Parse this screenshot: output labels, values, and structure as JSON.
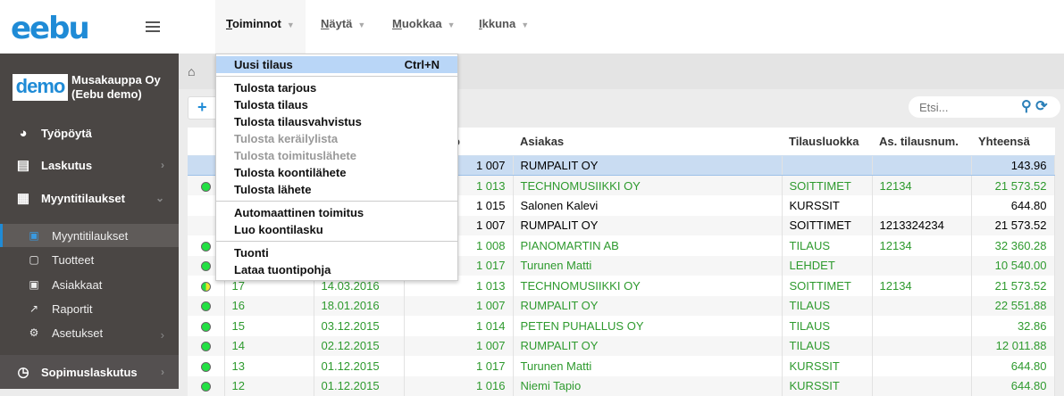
{
  "app": {
    "logo": "eebu",
    "company_logo": "demo",
    "company": "Musakauppa Oy (Eebu demo)"
  },
  "topnav": [
    {
      "label": "Toiminnot",
      "key": "T",
      "rest": "oiminnot"
    },
    {
      "label": "Näytä",
      "key": "N",
      "rest": "äytä"
    },
    {
      "label": "Muokkaa",
      "key": "M",
      "rest": "uokkaa"
    },
    {
      "label": "Ikkuna",
      "key": "I",
      "rest": "kkuna"
    }
  ],
  "sidebar": {
    "items": [
      {
        "label": "Työpöytä",
        "icon": "dashboard-icon"
      },
      {
        "label": "Laskutus",
        "icon": "invoice-icon"
      },
      {
        "label": "Myyntitilaukset",
        "icon": "store-icon"
      },
      {
        "label": "Sopimuslaskutus",
        "icon": "clock-icon"
      }
    ],
    "sub": [
      {
        "label": "Myyntitilaukset"
      },
      {
        "label": "Tuotteet"
      },
      {
        "label": "Asiakkaat"
      },
      {
        "label": "Raportit"
      },
      {
        "label": "Asetukset"
      }
    ]
  },
  "toolbar": {
    "add": "+",
    "search_placeholder": "Etsi..."
  },
  "menu": {
    "items": [
      {
        "label": "Uusi tilaus",
        "shortcut": "Ctrl+N"
      },
      {
        "label": "Tulosta tarjous"
      },
      {
        "label": "Tulosta tilaus"
      },
      {
        "label": "Tulosta tilausvahvistus"
      },
      {
        "label": "Tulosta keräilylista",
        "disabled": true
      },
      {
        "label": "Tulosta toimituslähete",
        "disabled": true
      },
      {
        "label": "Tulosta koontilähete"
      },
      {
        "label": "Tulosta lähete"
      },
      {
        "label": "Automaattinen toimitus"
      },
      {
        "label": "Luo koontilasku"
      },
      {
        "label": "Tuonti"
      },
      {
        "label": "Lataa tuontipohja"
      }
    ]
  },
  "table": {
    "headers": [
      "",
      "",
      "",
      "snumero",
      "Asiakas",
      "Tilausluokka",
      "As. tilausnum.",
      "Yhteensä"
    ],
    "rows": [
      {
        "status": "",
        "nro": "",
        "date": "",
        "custno": "1 007",
        "customer": "RUMPALIT OY",
        "class": "",
        "ref": "",
        "total": "143.96"
      },
      {
        "status": "green",
        "nro": "",
        "date": "",
        "custno": "1 013",
        "customer": "TECHNOMUSIIKKI OY",
        "class": "SOITTIMET",
        "ref": "12134",
        "total": "21 573.52"
      },
      {
        "status": "",
        "nro": "",
        "date": "",
        "custno": "1 015",
        "customer": "Salonen Kalevi",
        "class": "KURSSIT",
        "ref": "",
        "total": "644.80"
      },
      {
        "status": "",
        "nro": "",
        "date": "",
        "custno": "1 007",
        "customer": "RUMPALIT OY",
        "class": "SOITTIMET",
        "ref": "1213324234",
        "total": "21 573.52"
      },
      {
        "status": "green",
        "nro": "",
        "date": "",
        "custno": "1 008",
        "customer": "PIANOMARTIN AB",
        "class": "TILAUS",
        "ref": "12134",
        "total": "32 360.28"
      },
      {
        "status": "green",
        "nro": "",
        "date": "",
        "custno": "1 017",
        "customer": "Turunen Matti",
        "class": "LEHDET",
        "ref": "",
        "total": "10 540.00"
      },
      {
        "status": "half",
        "nro": "17",
        "date": "14.03.2016",
        "custno": "1 013",
        "customer": "TECHNOMUSIIKKI OY",
        "class": "SOITTIMET",
        "ref": "12134",
        "total": "21 573.52"
      },
      {
        "status": "green",
        "nro": "16",
        "date": "18.01.2016",
        "custno": "1 007",
        "customer": "RUMPALIT OY",
        "class": "TILAUS",
        "ref": "",
        "total": "22 551.88"
      },
      {
        "status": "green",
        "nro": "15",
        "date": "03.12.2015",
        "custno": "1 014",
        "customer": "PETEN PUHALLUS OY",
        "class": "TILAUS",
        "ref": "",
        "total": "32.86"
      },
      {
        "status": "green",
        "nro": "14",
        "date": "02.12.2015",
        "custno": "1 007",
        "customer": "RUMPALIT OY",
        "class": "TILAUS",
        "ref": "",
        "total": "12 011.88"
      },
      {
        "status": "green",
        "nro": "13",
        "date": "01.12.2015",
        "custno": "1 017",
        "customer": "Turunen Matti",
        "class": "KURSSIT",
        "ref": "",
        "total": "644.80"
      },
      {
        "status": "green",
        "nro": "12",
        "date": "01.12.2015",
        "custno": "1 016",
        "customer": "Niemi Tapio",
        "class": "KURSSIT",
        "ref": "",
        "total": "644.80"
      }
    ]
  },
  "colors": {
    "accent": "#1f8bd6",
    "sidebar": "#4a4644",
    "green_text": "#2e9a2e",
    "selected_row": "#c9dcf2",
    "menu_highlight": "#b9d6f7"
  }
}
